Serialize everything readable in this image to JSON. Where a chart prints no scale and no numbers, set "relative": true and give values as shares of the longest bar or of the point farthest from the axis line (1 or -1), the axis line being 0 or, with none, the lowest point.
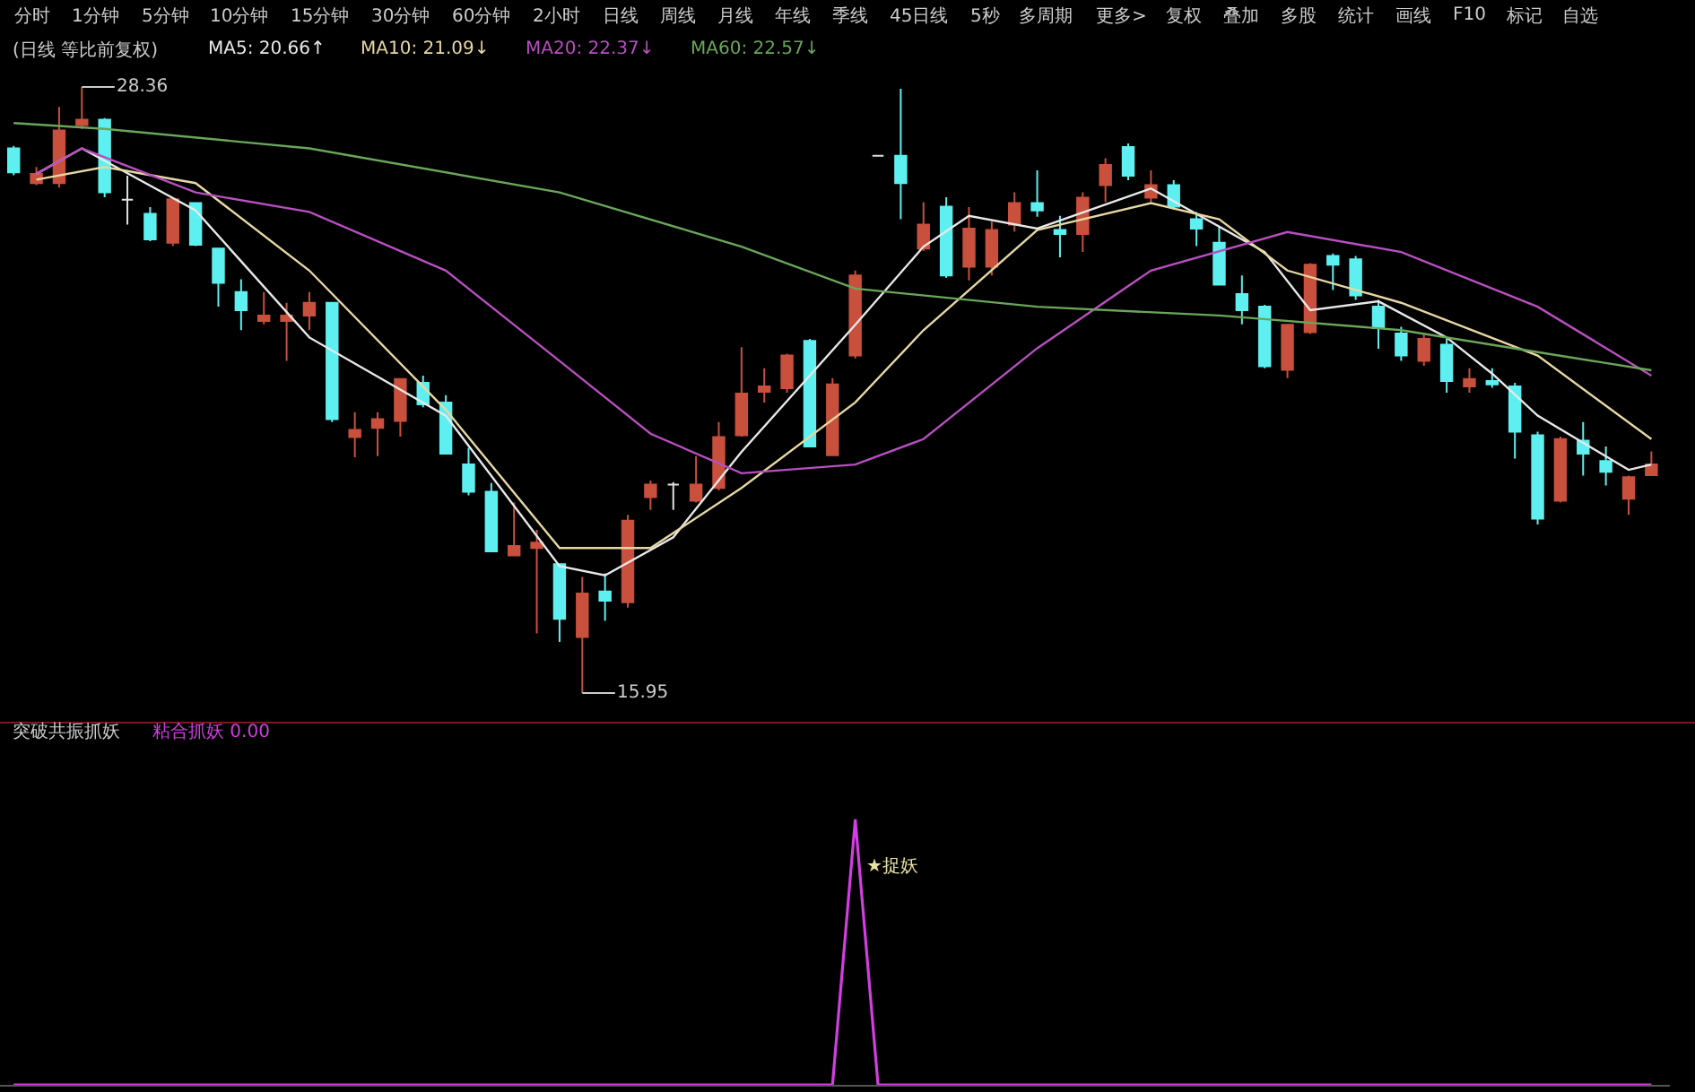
{
  "chart_data": [
    {
      "type": "candlestick",
      "title": "(日线 等比前复权)",
      "categories": [
        null,
        null,
        null,
        null,
        null,
        null,
        null,
        null,
        null,
        null,
        null,
        null,
        null,
        null,
        null,
        null,
        null,
        null,
        null,
        null,
        null,
        null,
        null,
        null,
        null,
        null,
        null,
        null,
        null,
        null,
        null,
        null,
        null,
        null,
        null,
        null,
        null,
        null,
        null,
        null,
        null,
        null,
        null,
        null,
        null,
        null,
        null,
        null,
        null,
        null,
        null,
        null,
        null,
        null,
        null,
        null,
        null,
        null,
        null,
        null,
        null,
        null,
        null,
        null,
        null,
        null,
        null,
        null,
        null,
        null,
        null,
        null,
        null
      ],
      "ohlc": [
        [
          27.1,
          27.15,
          26.55,
          26.61
        ],
        [
          26.39,
          26.72,
          26.35,
          26.58
        ],
        [
          26.39,
          27.95,
          26.3,
          27.47
        ],
        [
          27.58,
          28.36,
          27.5,
          27.69
        ],
        [
          27.69,
          27.72,
          26.1,
          26.2
        ],
        [
          26.05,
          26.54,
          25.54,
          26.05
        ],
        [
          25.76,
          25.9,
          25.2,
          25.24
        ],
        [
          25.17,
          26.1,
          25.1,
          26.06
        ],
        [
          25.98,
          26.0,
          25.1,
          25.13
        ],
        [
          25.05,
          25.05,
          23.86,
          24.35
        ],
        [
          24.16,
          24.42,
          23.38,
          23.79
        ],
        [
          23.57,
          24.16,
          23.5,
          23.68
        ],
        [
          23.57,
          23.94,
          22.75,
          23.68
        ],
        [
          23.68,
          24.16,
          23.38,
          23.94
        ],
        [
          23.94,
          23.94,
          21.5,
          21.56
        ],
        [
          21.19,
          21.7,
          20.78,
          21.34
        ],
        [
          21.38,
          21.7,
          20.8,
          21.56
        ],
        [
          21.52,
          22.4,
          21.2,
          22.38
        ],
        [
          22.3,
          22.45,
          21.8,
          21.86
        ],
        [
          21.9,
          22.05,
          20.85,
          20.85
        ],
        [
          20.63,
          20.97,
          20.0,
          20.07
        ],
        [
          20.07,
          20.25,
          18.85,
          18.85
        ],
        [
          18.77,
          19.85,
          18.75,
          18.96
        ],
        [
          18.92,
          19.29,
          17.17,
          19.03
        ],
        [
          18.59,
          18.6,
          17.0,
          17.47
        ],
        [
          17.1,
          18.33,
          15.95,
          17.99
        ],
        [
          18.03,
          18.4,
          17.43,
          17.84
        ],
        [
          17.81,
          19.6,
          17.7,
          19.48
        ],
        [
          19.96,
          20.3,
          19.7,
          20.22
        ],
        [
          20.22,
          20.27,
          19.7,
          20.22
        ],
        [
          19.89,
          20.8,
          19.85,
          20.22
        ],
        [
          20.15,
          21.5,
          20.1,
          21.19
        ],
        [
          21.23,
          23.03,
          21.2,
          22.08
        ],
        [
          22.12,
          22.6,
          21.9,
          22.23
        ],
        [
          22.19,
          22.9,
          22.1,
          22.86
        ],
        [
          23.16,
          23.2,
          21.0,
          21.0
        ],
        [
          20.82,
          22.4,
          20.8,
          22.27
        ],
        [
          22.86,
          24.6,
          22.8,
          24.5
        ],
        [
          26.95,
          26.97,
          26.93,
          26.95
        ],
        [
          26.95,
          28.32,
          25.65,
          26.39
        ],
        [
          25.05,
          26.0,
          25.0,
          25.54
        ],
        [
          25.91,
          26.1,
          24.45,
          24.5
        ],
        [
          24.68,
          25.9,
          24.4,
          25.46
        ],
        [
          24.68,
          25.6,
          24.5,
          25.43
        ],
        [
          25.54,
          26.2,
          25.4,
          25.98
        ],
        [
          25.98,
          26.65,
          25.7,
          25.83
        ],
        [
          25.43,
          25.72,
          24.87,
          25.35
        ],
        [
          25.35,
          26.2,
          24.98,
          26.09
        ],
        [
          26.35,
          26.9,
          26.0,
          26.76
        ],
        [
          27.13,
          27.2,
          26.45,
          26.54
        ],
        [
          26.09,
          26.65,
          26.0,
          26.35
        ],
        [
          26.35,
          26.45,
          25.85,
          25.91
        ],
        [
          25.65,
          25.8,
          25.1,
          25.46
        ],
        [
          25.17,
          25.5,
          24.3,
          24.31
        ],
        [
          24.12,
          24.5,
          23.5,
          23.79
        ],
        [
          23.86,
          23.9,
          22.6,
          22.64
        ],
        [
          22.57,
          23.5,
          22.4,
          23.49
        ],
        [
          23.34,
          24.75,
          23.3,
          24.72
        ],
        [
          24.9,
          24.95,
          24.2,
          24.72
        ],
        [
          24.83,
          24.9,
          24.0,
          24.09
        ],
        [
          23.86,
          24.0,
          23.0,
          23.42
        ],
        [
          23.31,
          23.45,
          22.75,
          22.86
        ],
        [
          22.75,
          23.3,
          22.65,
          23.2
        ],
        [
          23.08,
          23.2,
          22.1,
          22.34
        ],
        [
          22.23,
          22.6,
          22.1,
          22.38
        ],
        [
          22.34,
          22.6,
          22.2,
          22.27
        ],
        [
          22.23,
          22.3,
          20.75,
          21.3
        ],
        [
          21.23,
          21.3,
          19.4,
          19.52
        ],
        [
          19.89,
          21.2,
          19.85,
          21.15
        ],
        [
          21.12,
          21.5,
          20.4,
          20.85
        ],
        [
          20.7,
          21.0,
          20.2,
          20.48
        ],
        [
          19.93,
          20.4,
          19.6,
          20.37
        ],
        [
          20.41,
          20.9,
          20.4,
          20.63
        ]
      ],
      "colors": [
        "#5ef0f0",
        "#c8503c",
        "#c8503c",
        "#c8503c",
        "#5ef0f0",
        "#e0e0e0",
        "#5ef0f0",
        "#c8503c",
        "#5ef0f0",
        "#5ef0f0",
        "#5ef0f0",
        "#c8503c",
        "#c8503c",
        "#c8503c",
        "#5ef0f0",
        "#c8503c",
        "#c8503c",
        "#c8503c",
        "#5ef0f0",
        "#5ef0f0",
        "#5ef0f0",
        "#5ef0f0",
        "#c8503c",
        "#c8503c",
        "#5ef0f0",
        "#c8503c",
        "#5ef0f0",
        "#c8503c",
        "#c8503c",
        "#e0e0e0",
        "#c8503c",
        "#c8503c",
        "#c8503c",
        "#c8503c",
        "#c8503c",
        "#5ef0f0",
        "#c8503c",
        "#c8503c",
        "#e0e0e0",
        "#5ef0f0",
        "#c8503c",
        "#5ef0f0",
        "#c8503c",
        "#c8503c",
        "#c8503c",
        "#5ef0f0",
        "#5ef0f0",
        "#c8503c",
        "#c8503c",
        "#5ef0f0",
        "#c8503c",
        "#5ef0f0",
        "#5ef0f0",
        "#5ef0f0",
        "#5ef0f0",
        "#5ef0f0",
        "#c8503c",
        "#c8503c",
        "#5ef0f0",
        "#5ef0f0",
        "#5ef0f0",
        "#5ef0f0",
        "#c8503c",
        "#5ef0f0",
        "#c8503c",
        "#5ef0f0",
        "#5ef0f0",
        "#5ef0f0",
        "#c8503c",
        "#5ef0f0",
        "#5ef0f0",
        "#c8503c",
        "#c8503c"
      ],
      "series": [
        {
          "name": "MA5: 20.66↑",
          "color": "#e8e8e8",
          "type": "line",
          "values": [
            null,
            26.58,
            null,
            27.1,
            null,
            null,
            null,
            null,
            25.83,
            null,
            null,
            null,
            null,
            23.23,
            null,
            null,
            null,
            null,
            null,
            21.63,
            null,
            null,
            null,
            null,
            18.55,
            null,
            18.36,
            null,
            null,
            19.14,
            null,
            null,
            20.89,
            null,
            null,
            null,
            null,
            23.49,
            null,
            null,
            25.09,
            null,
            25.72,
            null,
            null,
            25.46,
            null,
            null,
            null,
            null,
            26.28,
            null,
            null,
            null,
            null,
            24.98,
            null,
            23.79,
            null,
            null,
            23.97,
            null,
            null,
            23.23,
            null,
            22.49,
            null,
            21.63,
            null,
            null,
            null,
            20.52,
            20.63
          ]
        },
        {
          "name": "MA10: 21.09↓",
          "color": "#e6d7a3",
          "type": "line",
          "values": [
            null,
            26.46,
            null,
            null,
            26.72,
            null,
            null,
            null,
            26.39,
            null,
            null,
            null,
            null,
            24.6,
            null,
            null,
            null,
            null,
            null,
            21.75,
            null,
            null,
            null,
            null,
            18.92,
            null,
            null,
            null,
            18.92,
            null,
            null,
            null,
            20.15,
            null,
            null,
            null,
            null,
            21.9,
            null,
            null,
            23.38,
            null,
            null,
            null,
            null,
            25.43,
            null,
            null,
            null,
            null,
            25.98,
            null,
            null,
            25.65,
            null,
            null,
            24.6,
            null,
            null,
            null,
            null,
            23.94,
            null,
            null,
            null,
            null,
            null,
            22.86,
            null,
            null,
            null,
            null,
            21.15
          ]
        },
        {
          "name": "MA20: 22.37↓",
          "color": "#b84fc0",
          "type": "line",
          "values": [
            null,
            26.58,
            null,
            27.1,
            null,
            null,
            null,
            null,
            26.2,
            null,
            null,
            null,
            null,
            25.8,
            null,
            null,
            null,
            null,
            null,
            24.6,
            null,
            null,
            null,
            null,
            22.75,
            null,
            null,
            null,
            21.26,
            null,
            null,
            null,
            20.45,
            null,
            null,
            null,
            null,
            20.63,
            null,
            null,
            21.15,
            null,
            null,
            null,
            null,
            23.01,
            null,
            null,
            null,
            null,
            24.6,
            null,
            null,
            null,
            null,
            null,
            25.39,
            null,
            null,
            null,
            null,
            24.98,
            null,
            null,
            null,
            null,
            null,
            23.86,
            null,
            null,
            null,
            null,
            22.45
          ]
        },
        {
          "name": "MA60: 22.57↓",
          "color": "#6aa65a",
          "type": "line",
          "values": [
            27.62,
            null,
            null,
            null,
            27.5,
            null,
            null,
            null,
            null,
            null,
            null,
            null,
            null,
            27.1,
            null,
            null,
            null,
            null,
            null,
            null,
            null,
            null,
            null,
            null,
            26.2,
            null,
            null,
            null,
            null,
            null,
            null,
            null,
            25.09,
            null,
            null,
            null,
            null,
            24.23,
            null,
            null,
            null,
            null,
            null,
            null,
            null,
            23.86,
            null,
            null,
            null,
            null,
            null,
            null,
            null,
            23.68,
            null,
            null,
            null,
            null,
            null,
            null,
            null,
            23.38,
            null,
            null,
            null,
            null,
            null,
            22.93,
            null,
            null,
            null,
            null,
            22.56
          ]
        }
      ],
      "legend": "top left",
      "annotations": [
        "分时",
        "1分钟",
        "5分钟",
        "10分钟",
        "15分钟",
        "30分钟",
        "60分钟",
        "2小时",
        "日线",
        "周线",
        "月线",
        "年线",
        "季线",
        "45日线",
        "5秒",
        "多周期",
        "更多>",
        "复权",
        "叠加",
        "多股",
        "统计",
        "画线",
        "F10",
        "标记",
        "自选",
        "28.36",
        "15.95"
      ]
    },
    {
      "type": "line",
      "title": "突破共振抓妖",
      "relative": true,
      "categories": [
        null,
        null,
        null,
        null,
        null,
        null,
        null,
        null,
        null,
        null,
        null,
        null,
        null,
        null,
        null,
        null,
        null,
        null,
        null,
        null,
        null,
        null,
        null,
        null,
        null,
        null,
        null,
        null,
        null,
        null,
        null,
        null,
        null,
        null,
        null,
        null,
        null,
        null,
        null,
        null,
        null,
        null,
        null,
        null,
        null,
        null,
        null,
        null,
        null,
        null,
        null,
        null,
        null,
        null,
        null,
        null,
        null,
        null,
        null,
        null,
        null,
        null,
        null,
        null,
        null,
        null,
        null,
        null,
        null,
        null,
        null,
        null,
        null
      ],
      "series": [
        {
          "name": "粘合抓妖 0.00",
          "color": "#d23ee0",
          "values": [
            0,
            0,
            0,
            0,
            0,
            0,
            0,
            0,
            0,
            0,
            0,
            0,
            0,
            0,
            0,
            0,
            0,
            0,
            0,
            0,
            0,
            0,
            0,
            0,
            0,
            0,
            0,
            0,
            0,
            0,
            0,
            0,
            0,
            0,
            0,
            0,
            0,
            1,
            0,
            0,
            0,
            0,
            0,
            0,
            0,
            0,
            0,
            0,
            0,
            0,
            0,
            0,
            0,
            0,
            0,
            0,
            0,
            0,
            0,
            0,
            0,
            0,
            0,
            0,
            0,
            0,
            0,
            0,
            0,
            0,
            0,
            0,
            0
          ]
        }
      ],
      "legend": "top left",
      "annotations": [
        "★捉妖"
      ]
    }
  ]
}
